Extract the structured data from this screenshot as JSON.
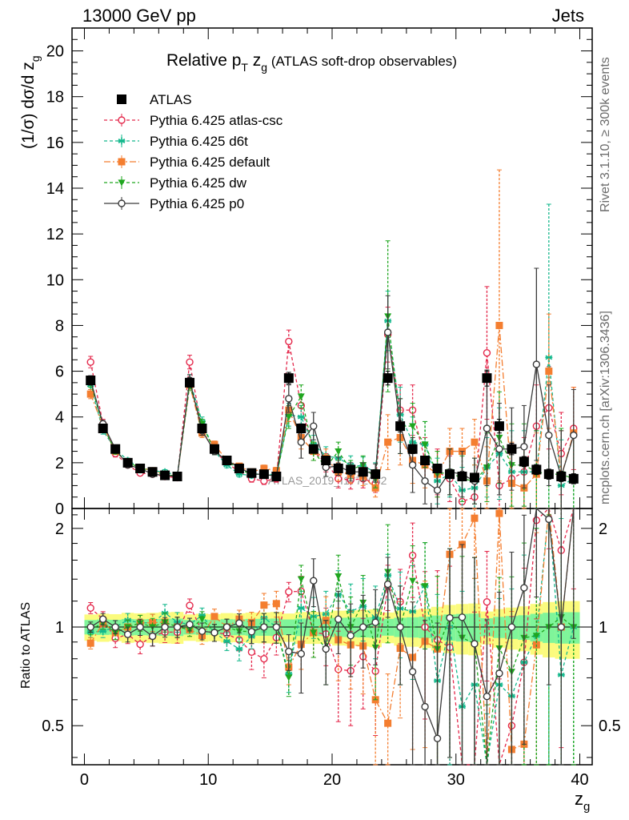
{
  "header": {
    "energy_label": "13000 GeV pp",
    "process_label": "Jets"
  },
  "side_labels": {
    "rivet": "Rivet 3.1.10, ≥ 300k events",
    "mcplots": "mcplots.cern.ch [arXiv:1306.3436]"
  },
  "watermark": "ATLAS_2019_I1772062",
  "chart_data": [
    {
      "type": "scatter",
      "panel": "main",
      "title": "Relative p_T z_g (ATLAS soft-drop observables)",
      "title_parts": {
        "main": "Relative p",
        "sub1": "T",
        "mid": " z",
        "sub2": "g",
        "paren": " (ATLAS soft-drop observables)"
      },
      "ylabel": "(1/σ) dσ/d z_g",
      "ylabel_parts": {
        "main": "(1/σ) dσ/d z",
        "sub": "g"
      },
      "xlabel": "z_g",
      "xlabel_parts": {
        "main": "z",
        "sub": "g"
      },
      "xlim": [
        -1,
        41
      ],
      "ylim": [
        0,
        21
      ],
      "x_ticks": [
        0,
        10,
        20,
        30,
        40
      ],
      "y_ticks": [
        0,
        2,
        4,
        6,
        8,
        10,
        12,
        14,
        16,
        18,
        20
      ],
      "legend_position": "top-left",
      "x": [
        0.5,
        1.5,
        2.5,
        3.5,
        4.5,
        5.5,
        6.5,
        7.5,
        8.5,
        9.5,
        10.5,
        11.5,
        12.5,
        13.5,
        14.5,
        15.5,
        16.5,
        17.5,
        18.5,
        19.5,
        20.5,
        21.5,
        22.5,
        23.5,
        24.5,
        25.5,
        26.5,
        27.5,
        28.5,
        29.5,
        30.5,
        31.5,
        32.5,
        33.5,
        34.5,
        35.5,
        36.5,
        37.5,
        38.5,
        39.5
      ],
      "series": [
        {
          "name": "ATLAS",
          "color": "#000000",
          "marker": "square",
          "values": [
            5.6,
            3.5,
            2.6,
            2.0,
            1.75,
            1.6,
            1.45,
            1.4,
            5.5,
            3.5,
            2.6,
            2.1,
            1.75,
            1.55,
            1.5,
            1.4,
            5.7,
            3.5,
            2.6,
            2.1,
            1.75,
            1.7,
            1.6,
            1.5,
            5.7,
            3.6,
            2.6,
            2.1,
            1.75,
            1.5,
            1.4,
            1.35,
            5.7,
            3.6,
            2.6,
            2.05,
            1.7,
            1.5,
            1.4,
            1.3
          ],
          "errors": [
            0.2,
            0.15,
            0.1,
            0.1,
            0.08,
            0.08,
            0.08,
            0.08,
            0.2,
            0.15,
            0.1,
            0.1,
            0.08,
            0.08,
            0.08,
            0.08,
            0.25,
            0.2,
            0.15,
            0.12,
            0.12,
            0.12,
            0.12,
            0.12,
            0.3,
            0.25,
            0.2,
            0.18,
            0.18,
            0.18,
            0.18,
            0.18,
            0.35,
            0.3,
            0.25,
            0.22,
            0.22,
            0.22,
            0.22,
            0.22
          ]
        },
        {
          "name": "Pythia 6.425 atlas-csc",
          "color": "#e4284b",
          "marker": "open-circle",
          "dash": "4,3",
          "values": [
            6.4,
            3.7,
            2.4,
            1.9,
            1.55,
            1.5,
            1.4,
            1.35,
            6.4,
            3.4,
            2.5,
            2.0,
            1.6,
            1.3,
            1.2,
            1.3,
            7.3,
            4.5,
            2.5,
            2.0,
            1.3,
            1.25,
            1.3,
            1.1,
            7.6,
            4.3,
            4.3,
            2.1,
            1.6,
            1.3,
            0.3,
            0.5,
            6.8,
            1.0,
            1.3,
            1.6,
            3.6,
            4.4,
            2.4,
            3.5
          ],
          "errors": [
            0.25,
            0.2,
            0.15,
            0.12,
            0.1,
            0.1,
            0.1,
            0.1,
            0.3,
            0.2,
            0.15,
            0.12,
            0.12,
            0.15,
            0.15,
            0.15,
            0.5,
            0.5,
            0.4,
            0.4,
            0.4,
            0.4,
            0.4,
            0.4,
            1.2,
            1.1,
            1.1,
            1.0,
            1.0,
            1.0,
            1.0,
            1.0,
            2.9,
            1.5,
            1.5,
            1.5,
            1.8,
            1.8,
            1.8,
            1.8
          ]
        },
        {
          "name": "Pythia 6.425 d6t",
          "color": "#13b88c",
          "marker": "star",
          "dash": "4,3",
          "values": [
            5.4,
            3.4,
            2.6,
            2.1,
            1.8,
            1.65,
            1.6,
            1.45,
            5.6,
            3.8,
            2.5,
            1.9,
            1.5,
            1.45,
            1.6,
            1.4,
            4.1,
            4.0,
            2.8,
            2.3,
            2.2,
            1.9,
            1.85,
            1.6,
            8.2,
            4.1,
            2.9,
            2.8,
            1.2,
            1.5,
            0.8,
            0.9,
            1.8,
            2.4,
            1.6,
            1.6,
            1.6,
            6.6,
            1.0,
            1.3
          ],
          "errors": [
            0.2,
            0.15,
            0.12,
            0.1,
            0.1,
            0.1,
            0.1,
            0.1,
            0.25,
            0.2,
            0.15,
            0.12,
            0.12,
            0.12,
            0.15,
            0.15,
            0.5,
            0.5,
            0.4,
            0.4,
            0.4,
            0.4,
            0.4,
            0.4,
            1.3,
            1.2,
            1.1,
            1.0,
            1.0,
            1.0,
            1.0,
            1.0,
            1.3,
            2.0,
            1.8,
            1.8,
            1.8,
            6.7,
            2.0,
            2.0
          ]
        },
        {
          "name": "Pythia 6.425 default",
          "color": "#f47e30",
          "marker": "square",
          "dash": "8,3,2,3",
          "values": [
            5.0,
            3.6,
            2.5,
            2.0,
            1.8,
            1.65,
            1.5,
            1.4,
            5.4,
            3.3,
            2.8,
            2.1,
            1.85,
            1.6,
            1.75,
            1.65,
            4.3,
            3.1,
            2.5,
            2.2,
            1.6,
            1.5,
            1.4,
            0.9,
            2.9,
            3.1,
            2.1,
            1.9,
            1.5,
            2.5,
            2.5,
            2.9,
            1.2,
            8.0,
            1.1,
            0.9,
            1.5,
            6.0,
            1.4,
            3.3
          ],
          "errors": [
            0.2,
            0.15,
            0.12,
            0.1,
            0.1,
            0.1,
            0.1,
            0.1,
            0.25,
            0.2,
            0.15,
            0.12,
            0.12,
            0.12,
            0.15,
            0.15,
            0.5,
            0.5,
            0.4,
            0.4,
            0.4,
            0.4,
            0.4,
            0.4,
            1.2,
            1.2,
            1.0,
            1.0,
            1.0,
            1.0,
            1.0,
            1.0,
            1.5,
            6.8,
            1.8,
            1.8,
            1.8,
            2.5,
            2.0,
            2.0
          ]
        },
        {
          "name": "Pythia 6.425 dw",
          "color": "#1fa61f",
          "marker": "triangle-down",
          "dash": "4,3",
          "values": [
            5.5,
            3.6,
            2.5,
            2.0,
            1.8,
            1.6,
            1.5,
            1.4,
            5.4,
            3.7,
            2.5,
            2.1,
            1.7,
            1.5,
            1.5,
            1.4,
            4.0,
            4.9,
            2.5,
            1.8,
            2.5,
            1.7,
            1.9,
            1.3,
            8.4,
            3.6,
            3.6,
            2.8,
            1.5,
            1.6,
            1.3,
            1.2,
            1.8,
            3.1,
            1.9,
            1.9,
            1.6,
            1.5,
            1.5,
            1.3
          ],
          "errors": [
            0.2,
            0.15,
            0.12,
            0.1,
            0.1,
            0.1,
            0.1,
            0.1,
            0.25,
            0.2,
            0.15,
            0.12,
            0.12,
            0.12,
            0.15,
            0.15,
            0.5,
            0.5,
            0.4,
            0.4,
            0.4,
            0.4,
            0.4,
            0.4,
            3.3,
            1.2,
            1.0,
            1.0,
            1.0,
            1.0,
            1.0,
            1.0,
            1.5,
            2.0,
            1.8,
            1.8,
            1.8,
            1.8,
            2.0,
            2.0
          ]
        },
        {
          "name": "Pythia 6.425 p0",
          "color": "#3a3a3a",
          "marker": "open-circle",
          "values": [
            5.6,
            3.7,
            2.6,
            1.9,
            1.75,
            1.5,
            1.45,
            1.4,
            5.6,
            3.4,
            2.5,
            2.1,
            1.8,
            1.5,
            1.5,
            1.4,
            4.8,
            2.9,
            3.6,
            1.8,
            1.85,
            1.6,
            1.6,
            1.55,
            7.7,
            3.6,
            1.9,
            1.2,
            0.8,
            1.6,
            1.5,
            1.2,
            3.5,
            2.6,
            2.6,
            2.7,
            6.3,
            3.2,
            1.4,
            3.2
          ],
          "errors": [
            0.2,
            0.15,
            0.12,
            0.1,
            0.1,
            0.1,
            0.1,
            0.1,
            0.25,
            0.2,
            0.15,
            0.12,
            0.12,
            0.12,
            0.15,
            0.15,
            0.6,
            0.7,
            0.6,
            0.4,
            0.4,
            0.4,
            0.4,
            0.4,
            1.6,
            1.2,
            1.2,
            1.0,
            1.0,
            1.0,
            1.0,
            1.0,
            2.5,
            2.0,
            1.8,
            1.8,
            4.2,
            2.2,
            2.0,
            2.0
          ]
        }
      ]
    },
    {
      "type": "scatter",
      "panel": "ratio",
      "ylabel": "Ratio to ATLAS",
      "xlabel": "z_g",
      "xlim": [
        -1,
        41
      ],
      "ylim": [
        0.38,
        2.3
      ],
      "y_scale": "log",
      "x_ticks": [
        0,
        10,
        20,
        30,
        40
      ],
      "y_ticks": [
        0.5,
        1,
        2
      ],
      "band_colors": {
        "inner": "#7ff59a",
        "outer": "#fbfb7d"
      }
    }
  ]
}
